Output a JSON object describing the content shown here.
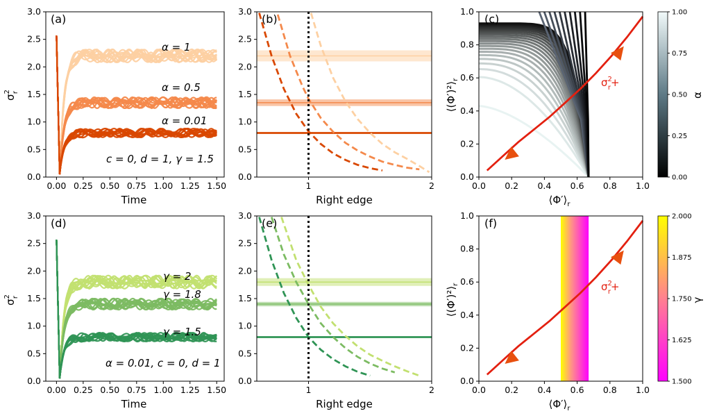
{
  "panels": {
    "a": {
      "label": "(a)",
      "xlabel": "Time",
      "ylabel": "σ",
      "ylabel_sup": "2",
      "ylabel_sub": "r",
      "annotations": [
        "α = 1",
        "α = 0.5",
        "α = 0.01"
      ],
      "params": "c = 0, d = 1, γ = 1.5"
    },
    "b": {
      "label": "(b)",
      "xlabel": "Right edge"
    },
    "c": {
      "label": "(c)",
      "xlabel": "⟨Φ′⟩",
      "xlabel_sub": "r",
      "ylabel": "⟨(Φ′)²⟩",
      "ylabel_sub": "r",
      "curve_label": "σ",
      "curve_label_sup": "2",
      "curve_label_sub": "r",
      "curve_label_tail": "+",
      "colorbar_label": "α"
    },
    "d": {
      "label": "(d)",
      "xlabel": "Time",
      "ylabel": "σ",
      "ylabel_sup": "2",
      "ylabel_sub": "r",
      "annotations": [
        "γ = 2",
        "γ = 1.8",
        "γ = 1.5"
      ],
      "params": "α = 0.01, c = 0, d = 1"
    },
    "e": {
      "label": "(e)",
      "xlabel": "Right edge"
    },
    "f": {
      "label": "(f)",
      "xlabel": "⟨Φ′⟩",
      "xlabel_sub": "r",
      "ylabel": "⟨(Φ′)²⟩",
      "ylabel_sub": "r",
      "curve_label": "σ",
      "curve_label_sup": "2",
      "curve_label_sub": "r",
      "curve_label_tail": "+",
      "colorbar_label": "γ"
    }
  },
  "colors": {
    "orange_light": "#fdd0a2",
    "orange_mid": "#f4894b",
    "orange_dark": "#d94801",
    "green_light": "#c2e070",
    "green_mid": "#7cbb62",
    "green_dark": "#2f9455",
    "red_curve": "#e32010",
    "arrow": "#e8500f"
  },
  "chart_data": [
    {
      "panel": "a",
      "type": "line",
      "x_range": [
        0,
        1.5
      ],
      "ylim": [
        0,
        3
      ],
      "xticks": [
        "0.00",
        "0.25",
        "0.50",
        "0.75",
        "1.00",
        "1.25",
        "1.50"
      ],
      "yticks": [
        "0.0",
        "0.5",
        "1.0",
        "1.5",
        "2.0",
        "2.5",
        "3.0"
      ],
      "series": [
        {
          "name": "α = 1",
          "steady": 2.2,
          "color": "#fdd0a2"
        },
        {
          "name": "α = 0.5",
          "steady": 1.35,
          "color": "#f4894b"
        },
        {
          "name": "α = 0.01",
          "steady": 0.8,
          "color": "#d94801"
        }
      ],
      "initial": 2.57
    },
    {
      "panel": "b",
      "type": "line",
      "xlim": [
        0.58,
        2
      ],
      "ylim": [
        0,
        3
      ],
      "xticks": [
        "1",
        "2"
      ],
      "yticks": [
        "0.0",
        "0.5",
        "1.0",
        "1.5",
        "2.0",
        "2.5",
        "3.0"
      ],
      "vline": 1,
      "bands": [
        {
          "y": 2.2,
          "half_width": 0.1,
          "color": "#fdd0a2"
        },
        {
          "y": 1.35,
          "half_width": 0.06,
          "color": "#f4894b"
        },
        {
          "y": 0.8,
          "half_width": 0.0,
          "color": "#d94801"
        }
      ],
      "dashed_curves": [
        {
          "x": [
            0.6,
            0.7,
            0.8,
            0.9,
            1.0,
            1.1,
            1.2,
            1.3,
            1.4,
            1.5,
            1.6
          ],
          "y": [
            2.98,
            2.2,
            1.6,
            1.15,
            0.83,
            0.6,
            0.43,
            0.31,
            0.22,
            0.16,
            0.12
          ],
          "color": "#d94801"
        },
        {
          "x": [
            0.75,
            0.85,
            0.95,
            1.0,
            1.1,
            1.2,
            1.3,
            1.4,
            1.5,
            1.6,
            1.7,
            1.8,
            1.9
          ],
          "y": [
            2.95,
            2.2,
            1.65,
            1.42,
            1.07,
            0.82,
            0.62,
            0.48,
            0.37,
            0.28,
            0.22,
            0.17,
            0.14
          ],
          "color": "#f4894b"
        },
        {
          "x": [
            1.02,
            1.1,
            1.2,
            1.3,
            1.4,
            1.5,
            1.6,
            1.7,
            1.8,
            1.9,
            1.98
          ],
          "y": [
            2.98,
            2.38,
            1.8,
            1.37,
            1.05,
            0.8,
            0.6,
            0.45,
            0.33,
            0.2,
            0.09
          ],
          "color": "#fdd0a2"
        }
      ]
    },
    {
      "panel": "c",
      "type": "line",
      "xlim": [
        0,
        1
      ],
      "ylim": [
        0,
        1
      ],
      "xticks": [
        "0.0",
        "0.2",
        "0.4",
        "0.6",
        "0.8",
        "1.0"
      ],
      "yticks": [
        "0.0",
        "0.2",
        "0.4",
        "0.6",
        "0.8",
        "1.0"
      ],
      "fan_apex": [
        0.67,
        0.0
      ],
      "fan_curves_alpha": [
        0.0,
        0.05,
        0.1,
        0.15,
        0.2,
        0.25,
        0.3,
        0.35,
        0.4,
        0.45,
        0.5,
        0.55,
        0.6,
        0.65,
        0.7,
        0.75,
        0.8,
        0.85,
        0.9,
        0.95,
        1.0
      ],
      "red_curve": {
        "x": [
          0.0,
          0.1,
          0.2,
          0.3,
          0.4,
          0.5,
          0.6,
          0.7,
          0.8,
          0.9,
          1.0
        ],
        "y": [
          0.0,
          0.09,
          0.18,
          0.26,
          0.34,
          0.43,
          0.52,
          0.62,
          0.73,
          0.85,
          0.98
        ]
      },
      "colorbar": {
        "range": [
          0.0,
          1.0
        ],
        "ticks": [
          "0.00",
          "0.25",
          "0.50",
          "0.75",
          "1.00"
        ]
      }
    },
    {
      "panel": "d",
      "type": "line",
      "x_range": [
        0,
        1.5
      ],
      "ylim": [
        0,
        3
      ],
      "xticks": [
        "0.00",
        "0.25",
        "0.50",
        "0.75",
        "1.00",
        "1.25",
        "1.50"
      ],
      "yticks": [
        "0.0",
        "0.5",
        "1.0",
        "1.5",
        "2.0",
        "2.5",
        "3.0"
      ],
      "series": [
        {
          "name": "γ = 2",
          "steady": 1.8,
          "color": "#c2e070"
        },
        {
          "name": "γ = 1.8",
          "steady": 1.4,
          "color": "#7cbb62"
        },
        {
          "name": "γ = 1.5",
          "steady": 0.8,
          "color": "#2f9455"
        }
      ],
      "initial": 2.57
    },
    {
      "panel": "e",
      "type": "line",
      "xlim": [
        0.58,
        2
      ],
      "ylim": [
        0,
        3
      ],
      "xticks": [
        "1",
        "2"
      ],
      "yticks": [
        "0.0",
        "0.5",
        "1.0",
        "1.5",
        "2.0",
        "2.5",
        "3.0"
      ],
      "vline": 1,
      "bands": [
        {
          "y": 1.8,
          "half_width": 0.07,
          "color": "#c2e070"
        },
        {
          "y": 1.4,
          "half_width": 0.04,
          "color": "#7cbb62"
        },
        {
          "y": 0.8,
          "half_width": 0.0,
          "color": "#2f9455"
        }
      ],
      "dashed_curves": [
        {
          "x": [
            0.6,
            0.7,
            0.8,
            0.9,
            1.0,
            1.1,
            1.2,
            1.3,
            1.4,
            1.5
          ],
          "y": [
            2.98,
            2.2,
            1.6,
            1.15,
            0.8,
            0.57,
            0.4,
            0.27,
            0.17,
            0.1
          ],
          "color": "#2f9455"
        },
        {
          "x": [
            0.7,
            0.8,
            0.9,
            1.0,
            1.1,
            1.2,
            1.3,
            1.4,
            1.5,
            1.6,
            1.7
          ],
          "y": [
            2.98,
            2.3,
            1.8,
            1.4,
            1.05,
            0.8,
            0.6,
            0.44,
            0.32,
            0.23,
            0.16
          ],
          "color": "#7cbb62"
        },
        {
          "x": [
            0.78,
            0.9,
            1.0,
            1.1,
            1.2,
            1.3,
            1.4,
            1.5,
            1.6,
            1.7,
            1.8,
            1.9
          ],
          "y": [
            2.98,
            2.2,
            1.75,
            1.35,
            1.05,
            0.82,
            0.63,
            0.48,
            0.37,
            0.27,
            0.18,
            0.1
          ],
          "color": "#c2e070"
        }
      ]
    },
    {
      "panel": "f",
      "type": "line",
      "xlim": [
        0,
        1
      ],
      "ylim": [
        0,
        1
      ],
      "xticks": [
        "0.0",
        "0.2",
        "0.4",
        "0.6",
        "0.8",
        "1.0"
      ],
      "yticks": [
        "0.0",
        "0.2",
        "0.4",
        "0.6",
        "0.8",
        "1.0"
      ],
      "band_x": [
        0.5,
        0.67
      ],
      "red_curve": {
        "x": [
          0.0,
          0.1,
          0.2,
          0.3,
          0.4,
          0.5,
          0.6,
          0.7,
          0.8,
          0.9,
          1.0
        ],
        "y": [
          0.0,
          0.09,
          0.18,
          0.26,
          0.34,
          0.43,
          0.52,
          0.62,
          0.73,
          0.85,
          0.98
        ]
      },
      "colorbar": {
        "range": [
          1.5,
          2.0
        ],
        "ticks": [
          "1.500",
          "1.625",
          "1.750",
          "1.875",
          "2.000"
        ]
      }
    }
  ]
}
